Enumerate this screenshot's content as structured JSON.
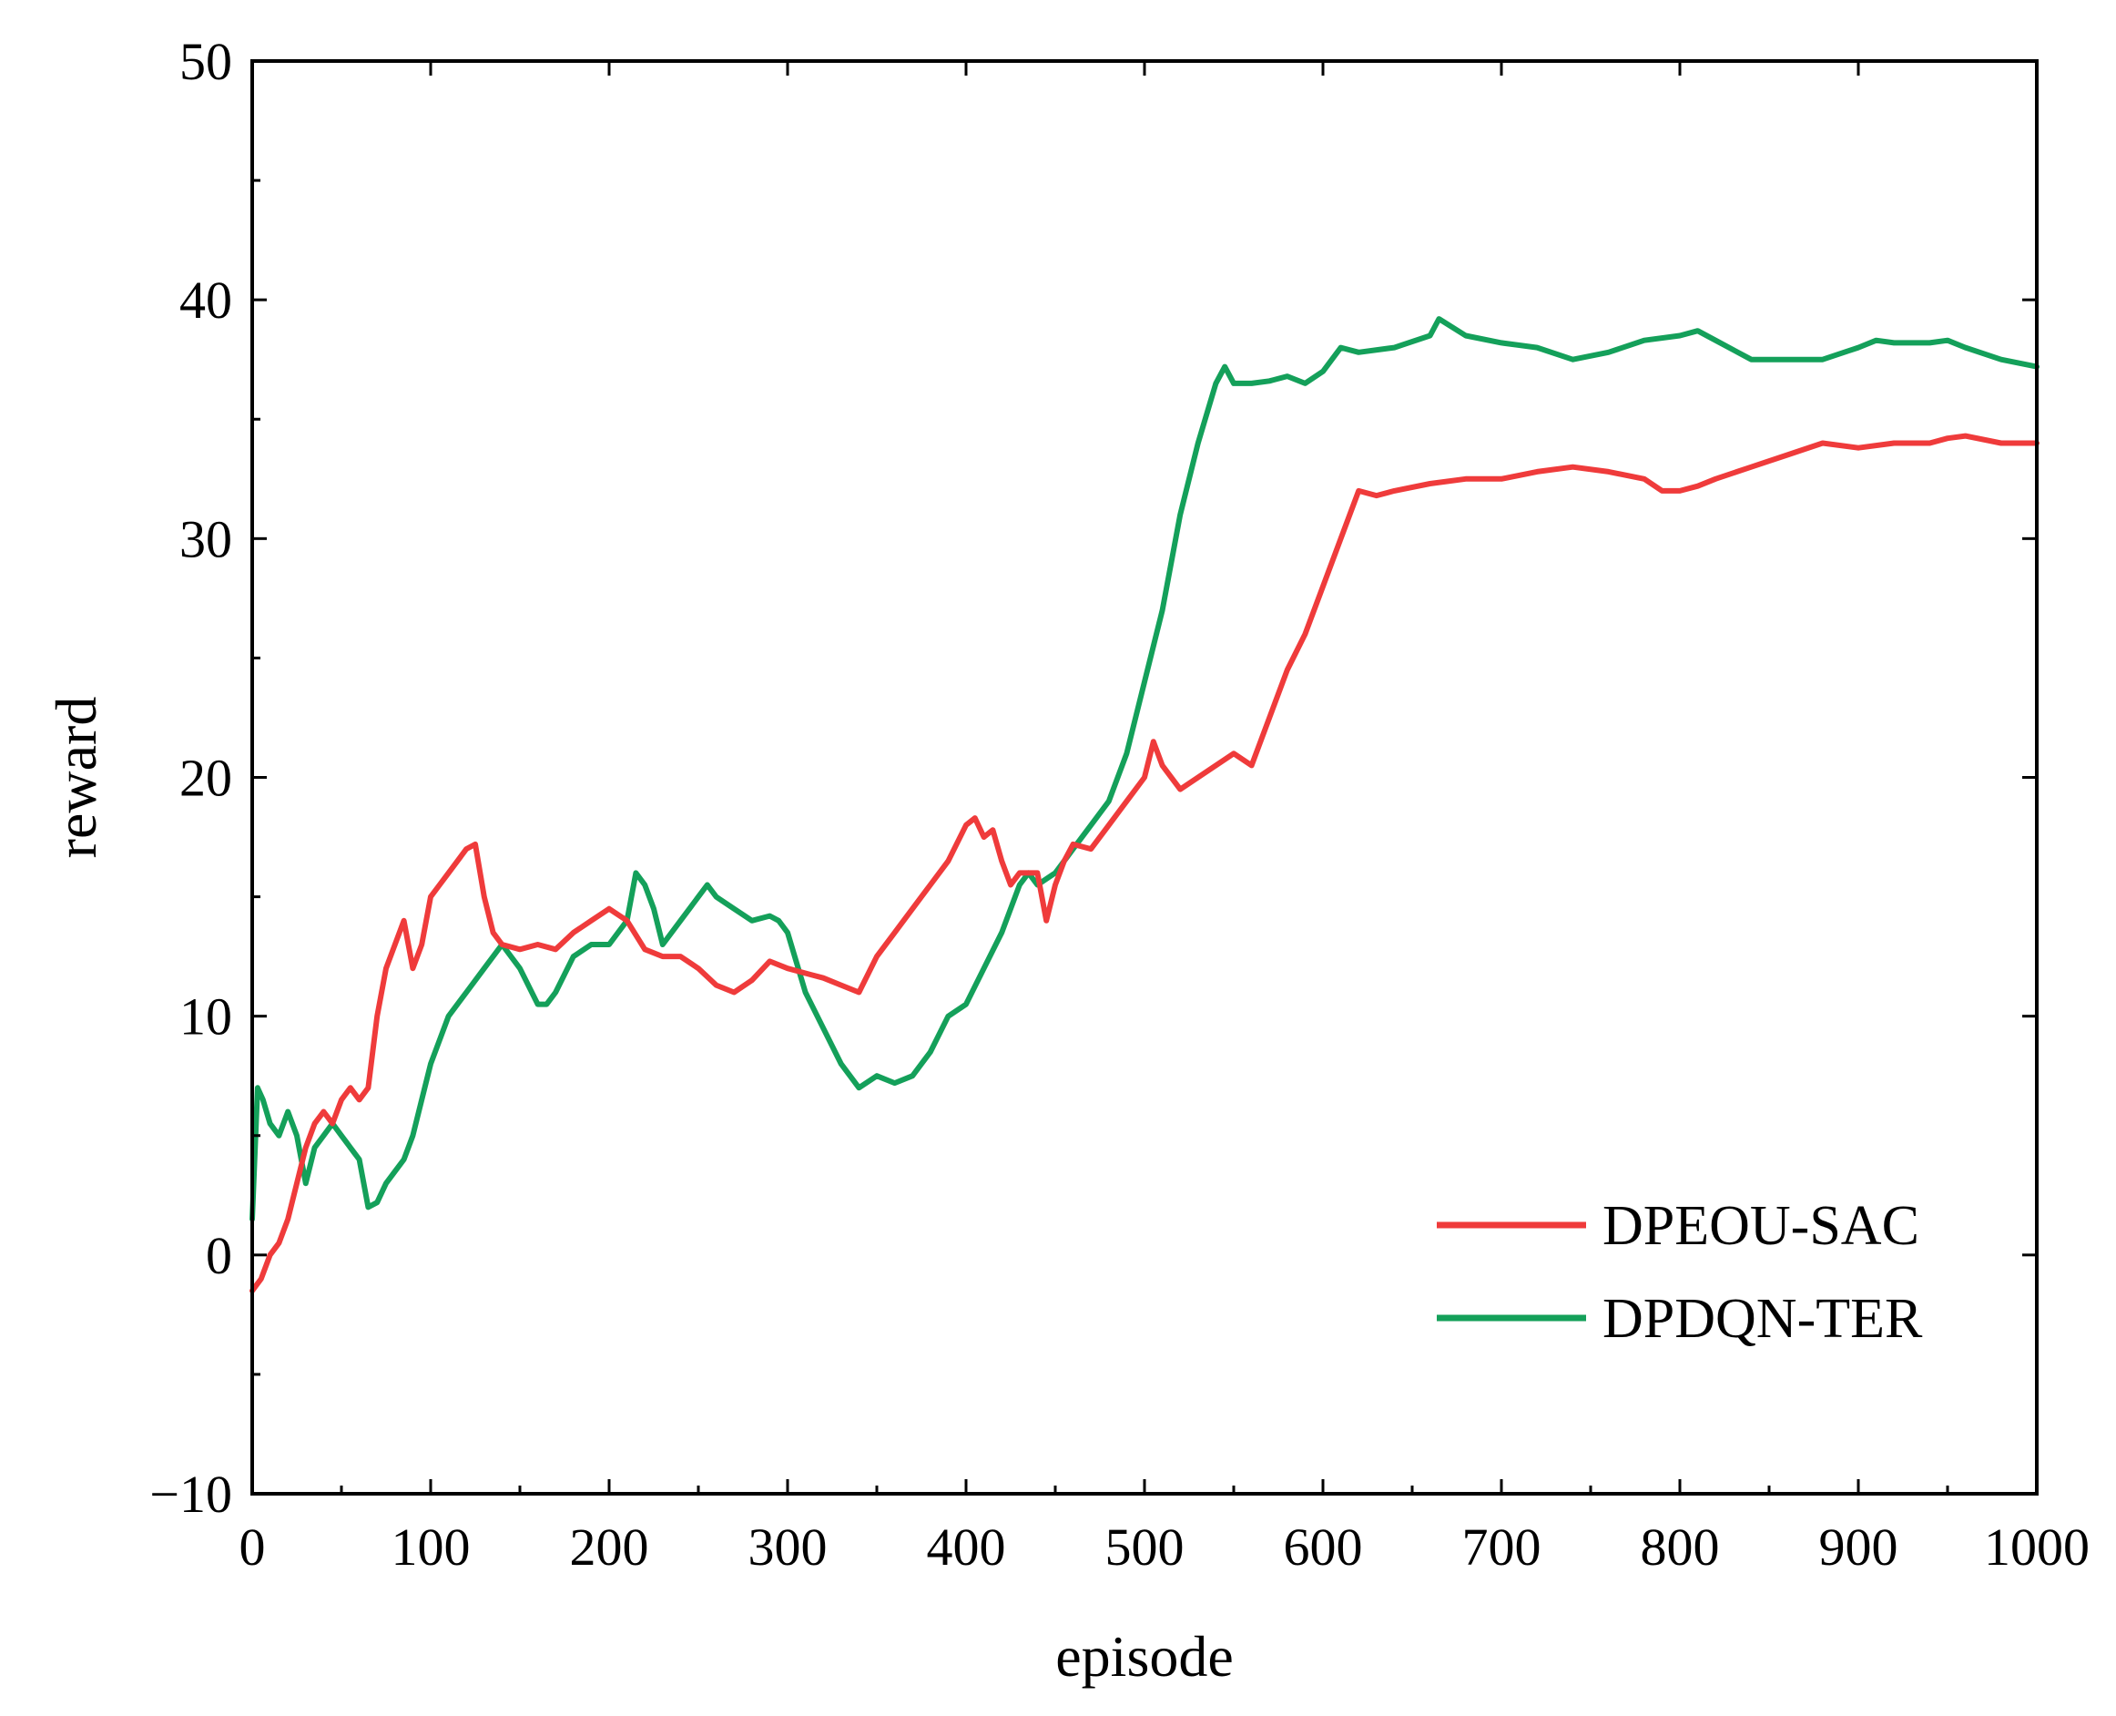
{
  "chart_data": {
    "type": "line",
    "title": "",
    "xlabel": "episode",
    "ylabel": "reward",
    "xlim": [
      0,
      1000
    ],
    "ylim": [
      -10,
      50
    ],
    "xticks": [
      0,
      100,
      200,
      300,
      400,
      500,
      600,
      700,
      800,
      900,
      1000
    ],
    "xtick_labels": [
      "0",
      "100",
      "200",
      "300",
      "400",
      "500",
      "600",
      "700",
      "800",
      "900",
      "1000"
    ],
    "yticks": [
      -10,
      0,
      10,
      20,
      30,
      40,
      50
    ],
    "ytick_labels": [
      "−10",
      "0",
      "10",
      "20",
      "30",
      "40",
      "50"
    ],
    "grid": false,
    "legend_position": "bottom-right",
    "series": [
      {
        "name": "DPEOU-SAC",
        "color": "#ef3b3b",
        "x": [
          0,
          5,
          10,
          15,
          20,
          25,
          30,
          35,
          40,
          45,
          50,
          55,
          60,
          65,
          70,
          75,
          80,
          85,
          90,
          95,
          100,
          105,
          110,
          115,
          120,
          125,
          130,
          135,
          140,
          150,
          160,
          170,
          180,
          190,
          200,
          210,
          220,
          230,
          240,
          250,
          260,
          270,
          280,
          290,
          300,
          310,
          320,
          330,
          340,
          350,
          360,
          370,
          380,
          390,
          400,
          405,
          410,
          415,
          420,
          425,
          430,
          440,
          445,
          450,
          455,
          460,
          470,
          480,
          490,
          500,
          505,
          510,
          520,
          530,
          540,
          550,
          560,
          570,
          580,
          590,
          600,
          610,
          620,
          630,
          640,
          660,
          680,
          700,
          720,
          740,
          760,
          780,
          790,
          800,
          810,
          820,
          840,
          860,
          880,
          900,
          920,
          940,
          950,
          960,
          980,
          1000
        ],
        "y": [
          -1.5,
          -1,
          0,
          0.5,
          1.5,
          3,
          4.5,
          5.5,
          6,
          5.5,
          6.5,
          7,
          6.5,
          7,
          10,
          12,
          13,
          14,
          12,
          13,
          15,
          15.5,
          16,
          16.5,
          17,
          17.2,
          15,
          13.5,
          13,
          12.8,
          13,
          12.8,
          13.5,
          14,
          14.5,
          14,
          12.8,
          12.5,
          12.5,
          12,
          11.3,
          11,
          11.5,
          12.3,
          12,
          11.8,
          11.6,
          11.3,
          11,
          12.5,
          13.5,
          14.5,
          15.5,
          16.5,
          18,
          18.3,
          17.5,
          17.8,
          16.5,
          15.5,
          16,
          16,
          14,
          15.5,
          16.5,
          17.2,
          17,
          18,
          19,
          20,
          21.5,
          20.5,
          19.5,
          20,
          20.5,
          21,
          20.5,
          22.5,
          24.5,
          26,
          28,
          30,
          32,
          31.8,
          32,
          32.3,
          32.5,
          32.5,
          32.8,
          33,
          32.8,
          32.5,
          32,
          32,
          32.2,
          32.5,
          33,
          33.5,
          34,
          33.8,
          34,
          34,
          34.2,
          34.3,
          34,
          34
        ]
      },
      {
        "name": "DPDQN-TER",
        "color": "#14a05a",
        "x": [
          0,
          3,
          6,
          10,
          15,
          20,
          25,
          30,
          35,
          40,
          45,
          50,
          55,
          60,
          65,
          70,
          75,
          80,
          85,
          90,
          95,
          100,
          110,
          120,
          130,
          140,
          150,
          160,
          165,
          170,
          180,
          190,
          200,
          210,
          215,
          220,
          225,
          230,
          240,
          250,
          255,
          260,
          270,
          280,
          290,
          295,
          300,
          310,
          320,
          330,
          340,
          350,
          360,
          370,
          380,
          390,
          400,
          410,
          420,
          430,
          435,
          440,
          450,
          460,
          470,
          480,
          490,
          500,
          510,
          520,
          530,
          540,
          545,
          550,
          560,
          570,
          580,
          590,
          600,
          610,
          620,
          640,
          660,
          665,
          680,
          700,
          720,
          740,
          760,
          780,
          800,
          810,
          820,
          840,
          860,
          880,
          900,
          910,
          920,
          940,
          950,
          960,
          980,
          1000
        ],
        "y": [
          1.5,
          7,
          6.5,
          5.5,
          5,
          6,
          5,
          3,
          4.5,
          5,
          5.5,
          5,
          4.5,
          4,
          2,
          2.2,
          3,
          3.5,
          4,
          5,
          6.5,
          8,
          10,
          11,
          12,
          13,
          12,
          10.5,
          10.5,
          11,
          12.5,
          13,
          13,
          14,
          16,
          15.5,
          14.5,
          13,
          14,
          15,
          15.5,
          15,
          14.5,
          14,
          14.2,
          14,
          13.5,
          11,
          9.5,
          8,
          7,
          7.5,
          7.2,
          7.5,
          8.5,
          10,
          10.5,
          12,
          13.5,
          15.5,
          16,
          15.5,
          16,
          17,
          18,
          19,
          21,
          24,
          27,
          31,
          34,
          36.5,
          37.2,
          36.5,
          36.5,
          36.6,
          36.8,
          36.5,
          37,
          38,
          37.8,
          38,
          38.5,
          39.2,
          38.5,
          38.2,
          38,
          37.5,
          37.8,
          38.3,
          38.5,
          38.7,
          38.3,
          37.5,
          37.5,
          37.5,
          38,
          38.3,
          38.2,
          38.2,
          38.3,
          38,
          37.5,
          37.2
        ]
      }
    ]
  }
}
